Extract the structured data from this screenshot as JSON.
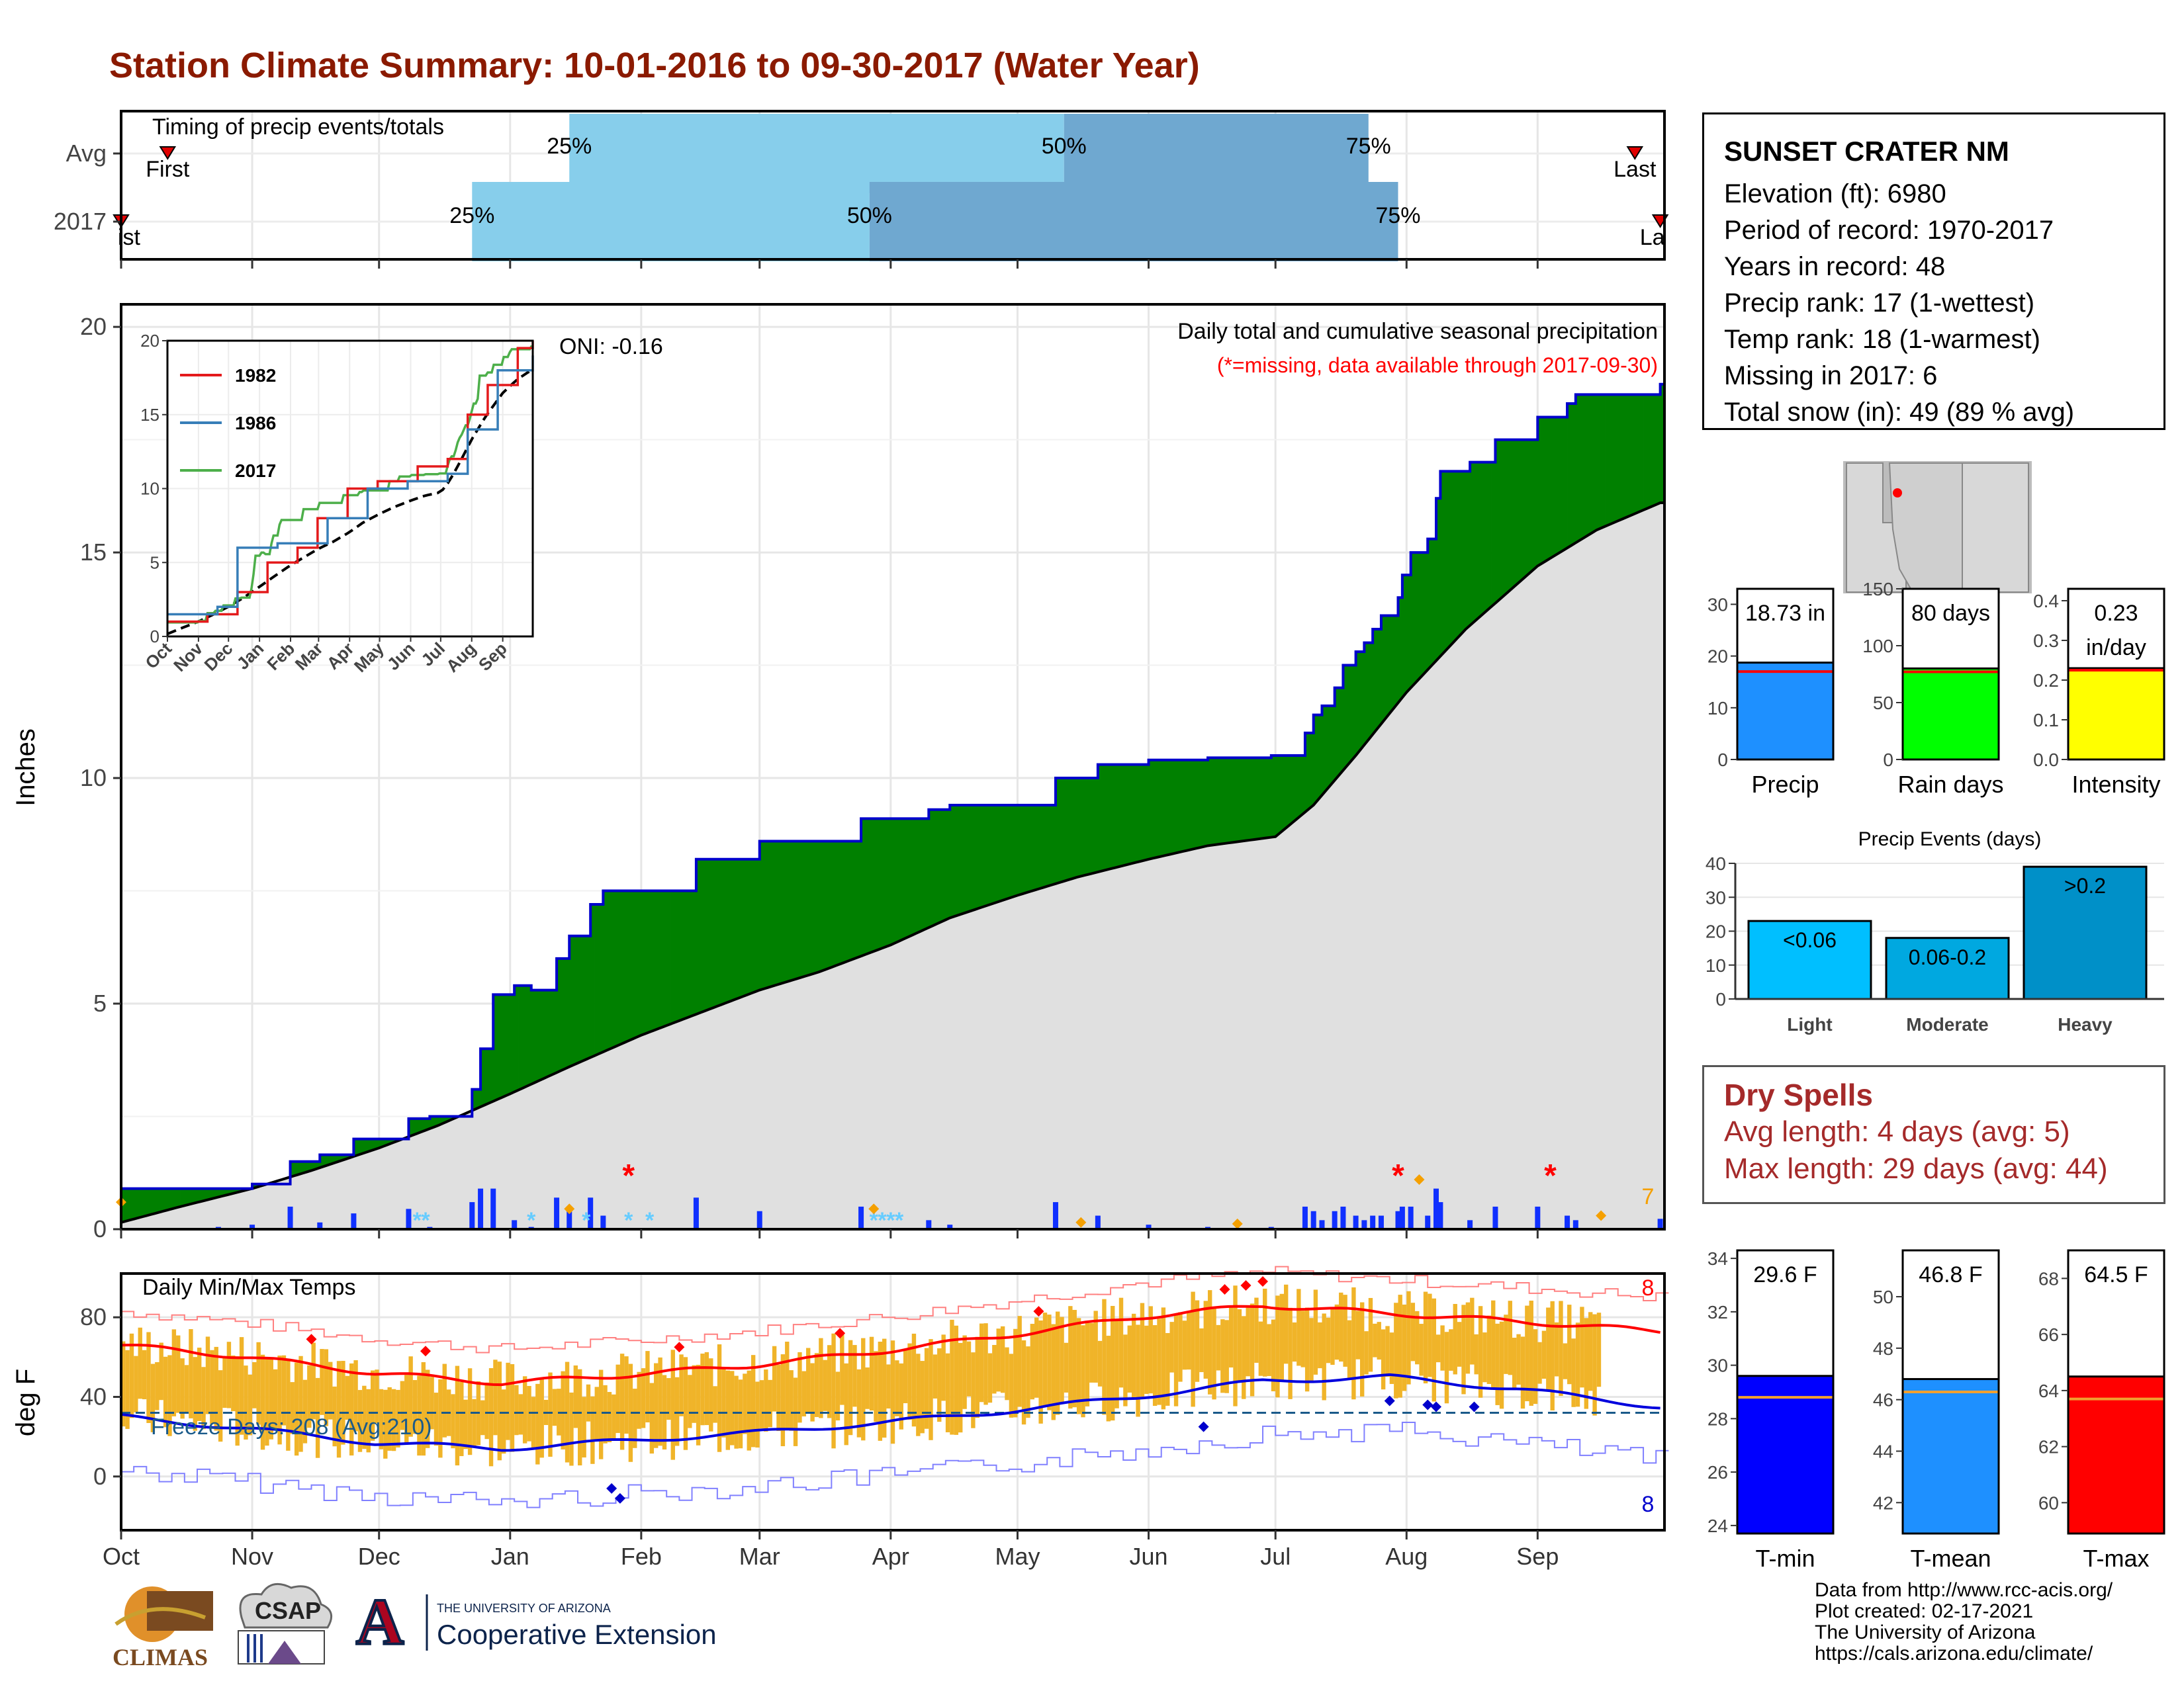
{
  "page": {
    "title": "Station Climate Summary: 10-01-2016 to 09-30-2017 (Water Year)"
  },
  "station": {
    "name": "SUNSET CRATER NM",
    "lines": [
      "Elevation (ft): 6980",
      "Period of record: 1970-2017",
      "Years in record: 48",
      "Precip rank: 17 (1-wettest)",
      "Temp rank: 18 (1-warmest)",
      "Missing in 2017: 6",
      "Total snow (in): 49 (89 % avg)"
    ]
  },
  "colors": {
    "title": "#8b1a00",
    "green": "#008000",
    "brown": "#8b5a1a",
    "gray_area": "#e0e0e0",
    "blue_line": "#0000cc",
    "light_bar": "#87ceeb",
    "dark_bar": "#6fa8d0",
    "temp_bar": "#f0b429",
    "dry": "#a52a2a"
  },
  "chart_data": [
    {
      "type": "bar",
      "id": "timing",
      "title": "Timing of precip events/totals",
      "categories": [
        "Avg",
        "2017"
      ],
      "quartile_labels": [
        "25%",
        "50%",
        "75%"
      ],
      "first_label": "First",
      "last_label": "Last",
      "first_label_2017": "ist",
      "last_label_2017": "La",
      "rows": [
        {
          "name": "Avg",
          "first": "2016-10-12",
          "q25": "2017-01-15",
          "q50": "2017-05-12",
          "q75": "2017-07-23",
          "last": "2017-09-24"
        },
        {
          "name": "2017",
          "first": "2016-10-01",
          "q25": "2016-12-23",
          "q50": "2017-03-27",
          "q75": "2017-07-30",
          "last": "2017-09-30"
        }
      ],
      "x_ticks": [
        "Oct",
        "Nov",
        "Dec",
        "Jan",
        "Feb",
        "Mar",
        "Apr",
        "May",
        "Jun",
        "Jul",
        "Aug",
        "Sep"
      ]
    },
    {
      "type": "area",
      "id": "precip",
      "title": "Daily total and cumulative seasonal precipitation",
      "subtitle": "(*=missing, data available through 2017-09-30)",
      "annotation": "ONI: -0.16",
      "ylabel": "Inches",
      "ylim": [
        0,
        20.5
      ],
      "y_ticks": [
        0,
        5,
        10,
        15,
        20
      ],
      "right_label": "7",
      "x_ticks": [
        "Oct",
        "Nov",
        "Dec",
        "Jan",
        "Feb",
        "Mar",
        "Apr",
        "May",
        "Jun",
        "Jul",
        "Aug",
        "Sep"
      ],
      "observed_steps": [
        [
          "2016-10-01",
          0.9
        ],
        [
          "2016-10-24",
          0.9
        ],
        [
          "2016-11-01",
          1.0
        ],
        [
          "2016-11-10",
          1.5
        ],
        [
          "2016-11-17",
          1.65
        ],
        [
          "2016-11-25",
          2.0
        ],
        [
          "2016-12-08",
          2.45
        ],
        [
          "2016-12-13",
          2.5
        ],
        [
          "2016-12-23",
          3.1
        ],
        [
          "2016-12-25",
          4.0
        ],
        [
          "2016-12-28",
          5.2
        ],
        [
          "2017-01-02",
          5.4
        ],
        [
          "2017-01-06",
          5.3
        ],
        [
          "2017-01-12",
          6.0
        ],
        [
          "2017-01-15",
          6.5
        ],
        [
          "2017-01-20",
          7.2
        ],
        [
          "2017-01-23",
          7.5
        ],
        [
          "2017-02-14",
          8.2
        ],
        [
          "2017-03-01",
          8.6
        ],
        [
          "2017-03-25",
          9.1
        ],
        [
          "2017-04-10",
          9.3
        ],
        [
          "2017-04-15",
          9.4
        ],
        [
          "2017-05-10",
          10.0
        ],
        [
          "2017-05-20",
          10.3
        ],
        [
          "2017-06-01",
          10.4
        ],
        [
          "2017-06-15",
          10.45
        ],
        [
          "2017-06-30",
          10.5
        ],
        [
          "2017-07-08",
          11.0
        ],
        [
          "2017-07-10",
          11.4
        ],
        [
          "2017-07-12",
          11.6
        ],
        [
          "2017-07-15",
          12.0
        ],
        [
          "2017-07-17",
          12.5
        ],
        [
          "2017-07-20",
          12.8
        ],
        [
          "2017-07-22",
          13.0
        ],
        [
          "2017-07-24",
          13.3
        ],
        [
          "2017-07-26",
          13.6
        ],
        [
          "2017-07-30",
          14.0
        ],
        [
          "2017-07-31",
          14.5
        ],
        [
          "2017-08-02",
          15.0
        ],
        [
          "2017-08-06",
          15.3
        ],
        [
          "2017-08-08",
          16.2
        ],
        [
          "2017-08-09",
          16.8
        ],
        [
          "2017-08-16",
          17.0
        ],
        [
          "2017-08-22",
          17.5
        ],
        [
          "2017-09-01",
          18.0
        ],
        [
          "2017-09-08",
          18.3
        ],
        [
          "2017-09-10",
          18.5
        ],
        [
          "2017-09-30",
          18.73
        ]
      ],
      "avg_points": [
        [
          "2016-10-01",
          0.15
        ],
        [
          "2016-10-15",
          0.5
        ],
        [
          "2016-11-01",
          0.9
        ],
        [
          "2016-11-15",
          1.3
        ],
        [
          "2016-12-01",
          1.8
        ],
        [
          "2016-12-15",
          2.3
        ],
        [
          "2017-01-01",
          3.0
        ],
        [
          "2017-01-15",
          3.6
        ],
        [
          "2017-02-01",
          4.3
        ],
        [
          "2017-02-15",
          4.8
        ],
        [
          "2017-03-01",
          5.3
        ],
        [
          "2017-03-15",
          5.7
        ],
        [
          "2017-04-01",
          6.3
        ],
        [
          "2017-04-15",
          6.9
        ],
        [
          "2017-05-01",
          7.4
        ],
        [
          "2017-05-15",
          7.8
        ],
        [
          "2017-06-01",
          8.2
        ],
        [
          "2017-06-15",
          8.5
        ],
        [
          "2017-07-01",
          8.7
        ],
        [
          "2017-07-10",
          9.4
        ],
        [
          "2017-07-20",
          10.5
        ],
        [
          "2017-08-01",
          11.9
        ],
        [
          "2017-08-15",
          13.3
        ],
        [
          "2017-09-01",
          14.7
        ],
        [
          "2017-09-15",
          15.5
        ],
        [
          "2017-09-30",
          16.1
        ]
      ]
    },
    {
      "type": "line",
      "id": "inset",
      "series": [
        {
          "name": "1982",
          "color": "#e41a1c"
        },
        {
          "name": "1986",
          "color": "#377eb8"
        },
        {
          "name": "2017",
          "color": "#4daf4a"
        }
      ],
      "ylim": [
        0,
        20
      ],
      "y_ticks": [
        0,
        5,
        10,
        15,
        20
      ],
      "x_ticks": [
        "Oct",
        "Nov",
        "Dec",
        "Jan",
        "Feb",
        "Mar",
        "Apr",
        "May",
        "Jun",
        "Jul",
        "Aug",
        "Sep"
      ]
    },
    {
      "type": "line",
      "id": "temps",
      "title": "Daily Min/Max Temps",
      "annotation": "Freeze Days: 208 (Avg:210)",
      "ylabel": "deg F",
      "ylim": [
        -27,
        102
      ],
      "y_ticks": [
        0,
        40,
        80
      ],
      "freeze_line": 32,
      "record_high_count": "8",
      "record_low_count": "8",
      "x_ticks": [
        "Oct",
        "Nov",
        "Dec",
        "Jan",
        "Feb",
        "Mar",
        "Apr",
        "May",
        "Jun",
        "Jul",
        "Aug",
        "Sep"
      ],
      "avg_max": [
        [
          0,
          66
        ],
        [
          30,
          60
        ],
        [
          60,
          52
        ],
        [
          90,
          47
        ],
        [
          120,
          51
        ],
        [
          150,
          56
        ],
        [
          180,
          63
        ],
        [
          210,
          71
        ],
        [
          240,
          80
        ],
        [
          270,
          86
        ],
        [
          300,
          82
        ],
        [
          330,
          78
        ],
        [
          364,
          73
        ]
      ],
      "avg_min": [
        [
          0,
          30
        ],
        [
          30,
          24
        ],
        [
          60,
          17
        ],
        [
          90,
          14
        ],
        [
          120,
          18
        ],
        [
          150,
          22
        ],
        [
          180,
          27
        ],
        [
          210,
          33
        ],
        [
          240,
          40
        ],
        [
          270,
          48
        ],
        [
          300,
          50
        ],
        [
          330,
          44
        ],
        [
          364,
          35
        ]
      ]
    },
    {
      "type": "bar",
      "id": "summary",
      "charts": [
        {
          "label": "Precip",
          "value": 18.73,
          "value_text": "18.73 in",
          "avg": 17.0,
          "ylim": [
            0,
            33
          ],
          "ticks": [
            0,
            10,
            20,
            30
          ],
          "color": "#1e90ff"
        },
        {
          "label": "Rain days",
          "value": 80,
          "value_text": "80 days",
          "avg": 77,
          "ylim": [
            0,
            150
          ],
          "ticks": [
            0,
            50,
            100,
            150
          ],
          "color": "#00ff00"
        },
        {
          "label": "Intensity",
          "value": 0.23,
          "value_text": "0.23",
          "value_text2": "in/day",
          "avg": 0.225,
          "ylim": [
            0,
            0.43
          ],
          "ticks": [
            0.0,
            0.1,
            0.2,
            0.3,
            0.4
          ],
          "color": "#ffff00"
        }
      ]
    },
    {
      "type": "bar",
      "id": "events",
      "title": "Precip Events (days)",
      "categories": [
        "Light",
        "Moderate",
        "Heavy"
      ],
      "value_labels": [
        "<0.06",
        "0.06-0.2",
        ">0.2"
      ],
      "values": [
        23,
        18,
        39
      ],
      "colors": [
        "#00bfff",
        "#00a8e0",
        "#0090c8"
      ],
      "ylim": [
        0,
        40
      ],
      "ticks": [
        0,
        10,
        20,
        30,
        40
      ]
    },
    {
      "type": "bar",
      "id": "tempbars",
      "charts": [
        {
          "label": "T-min",
          "value": 29.6,
          "value_text": "29.6 F",
          "avg": 28.8,
          "ylim": [
            23.7,
            34.3
          ],
          "ticks": [
            24,
            26,
            28,
            30,
            32,
            34
          ],
          "color": "#0000ff"
        },
        {
          "label": "T-mean",
          "value": 46.8,
          "value_text": "46.8 F",
          "avg": 46.3,
          "ylim": [
            40.8,
            51.8
          ],
          "ticks": [
            42,
            44,
            46,
            48,
            50
          ],
          "color": "#1e90ff"
        },
        {
          "label": "T-max",
          "value": 64.5,
          "value_text": "64.5 F",
          "avg": 63.7,
          "ylim": [
            58.9,
            69.0
          ],
          "ticks": [
            60,
            62,
            64,
            66,
            68
          ],
          "color": "#ff0000"
        }
      ]
    }
  ],
  "dry_spells": {
    "title": "Dry Spells",
    "avg": "Avg length: 4 days (avg: 5)",
    "max": "Max length: 29 days (avg: 44)"
  },
  "credits": [
    "Data from http://www.rcc-acis.org/",
    "Plot created: 02-17-2021",
    "The University of Arizona",
    "https://cals.arizona.edu/climate/"
  ],
  "logos": {
    "climas": "CLIMAS",
    "csap": "CSAP",
    "ua_small": "THE UNIVERSITY OF ARIZONA",
    "ua_big": "Cooperative Extension",
    "ua_letter": "A"
  }
}
